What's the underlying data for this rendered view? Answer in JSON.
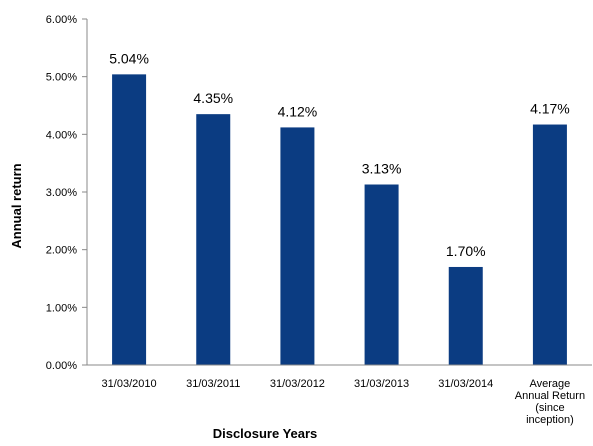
{
  "chart_data": {
    "type": "bar",
    "categories": [
      [
        "31/03/2010"
      ],
      [
        "31/03/2011"
      ],
      [
        "31/03/2012"
      ],
      [
        "31/03/2013"
      ],
      [
        "31/03/2014"
      ],
      [
        "Average",
        "Annual Return",
        "(since",
        "inception)"
      ]
    ],
    "values": [
      5.04,
      4.35,
      4.12,
      3.13,
      1.7,
      4.17
    ],
    "data_labels": [
      "5.04%",
      "4.35%",
      "4.12%",
      "3.13%",
      "1.70%",
      "4.17%"
    ],
    "xlabel": "Disclosure Years",
    "ylabel": "Annual return",
    "ylim": [
      0,
      6
    ],
    "yticks": [
      "0.00%",
      "1.00%",
      "2.00%",
      "3.00%",
      "4.00%",
      "5.00%",
      "6.00%"
    ],
    "grid": false,
    "bar_color": "#0B3C82"
  }
}
